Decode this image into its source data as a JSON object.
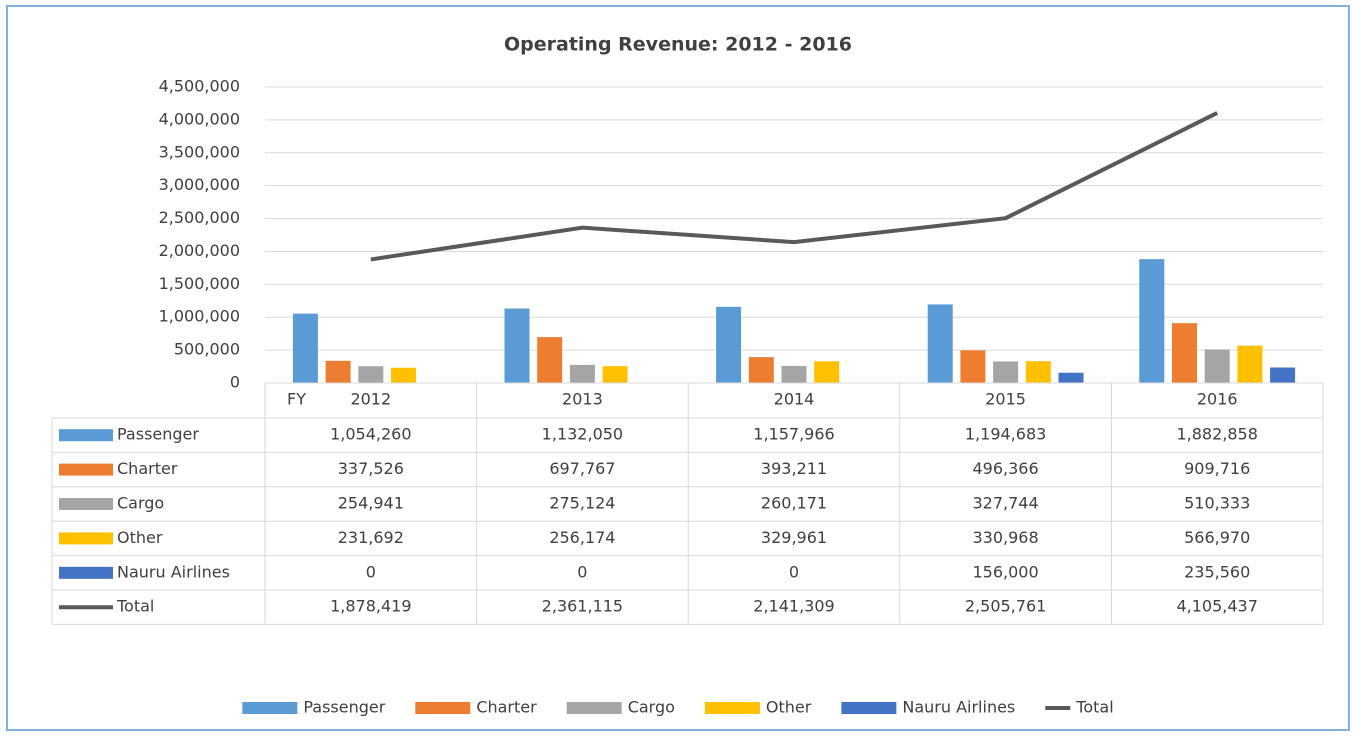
{
  "chart_data": {
    "type": "bar",
    "title": "Operating Revenue: 2012 - 2016",
    "x_label": "FY",
    "categories": [
      "2012",
      "2013",
      "2014",
      "2015",
      "2016"
    ],
    "series": [
      {
        "name": "Passenger",
        "color": "#5b9bd5",
        "type": "bar",
        "values": [
          1054260,
          1132050,
          1157966,
          1194683,
          1882858
        ],
        "value_labels": [
          "1,054,260",
          "1,132,050",
          "1,157,966",
          "1,194,683",
          "1,882,858"
        ]
      },
      {
        "name": "Charter",
        "color": "#ed7d31",
        "type": "bar",
        "values": [
          337526,
          697767,
          393211,
          496366,
          909716
        ],
        "value_labels": [
          "337,526",
          "697,767",
          "393,211",
          "496,366",
          "909,716"
        ]
      },
      {
        "name": "Cargo",
        "color": "#a5a5a5",
        "type": "bar",
        "values": [
          254941,
          275124,
          260171,
          327744,
          510333
        ],
        "value_labels": [
          "254,941",
          "275,124",
          "260,171",
          "327,744",
          "510,333"
        ]
      },
      {
        "name": "Other",
        "color": "#ffc000",
        "type": "bar",
        "values": [
          231692,
          256174,
          329961,
          330968,
          566970
        ],
        "value_labels": [
          "231,692",
          "256,174",
          "329,961",
          "330,968",
          "566,970"
        ]
      },
      {
        "name": "Nauru Airlines",
        "color": "#4472c4",
        "type": "bar",
        "values": [
          0,
          0,
          0,
          156000,
          235560
        ],
        "value_labels": [
          "0",
          "0",
          "0",
          "156,000",
          "235,560"
        ]
      },
      {
        "name": "Total",
        "color": "#595959",
        "type": "line",
        "values": [
          1878419,
          2361115,
          2141309,
          2505761,
          4105437
        ],
        "value_labels": [
          "1,878,419",
          "2,361,115",
          "2,141,309",
          "2,505,761",
          "4,105,437"
        ]
      }
    ],
    "ylim": [
      0,
      4500000
    ],
    "yticks": [
      0,
      {
        "value": 500000,
        "label": "500,000"
      },
      {
        "value": 1000000,
        "label": "1,000,000"
      },
      {
        "value": 1500000,
        "label": "1,500,000"
      },
      {
        "value": 2000000,
        "label": "2,000,000"
      },
      {
        "value": 2500000,
        "label": "2,500,000"
      },
      {
        "value": 3000000,
        "label": "3,000,000"
      },
      {
        "value": 3500000,
        "label": "3,500,000"
      },
      {
        "value": 4000000,
        "label": "4,000,000"
      },
      {
        "value": 4500000,
        "label": "4,500,000"
      }
    ],
    "grid": true,
    "legend": "bottom"
  }
}
